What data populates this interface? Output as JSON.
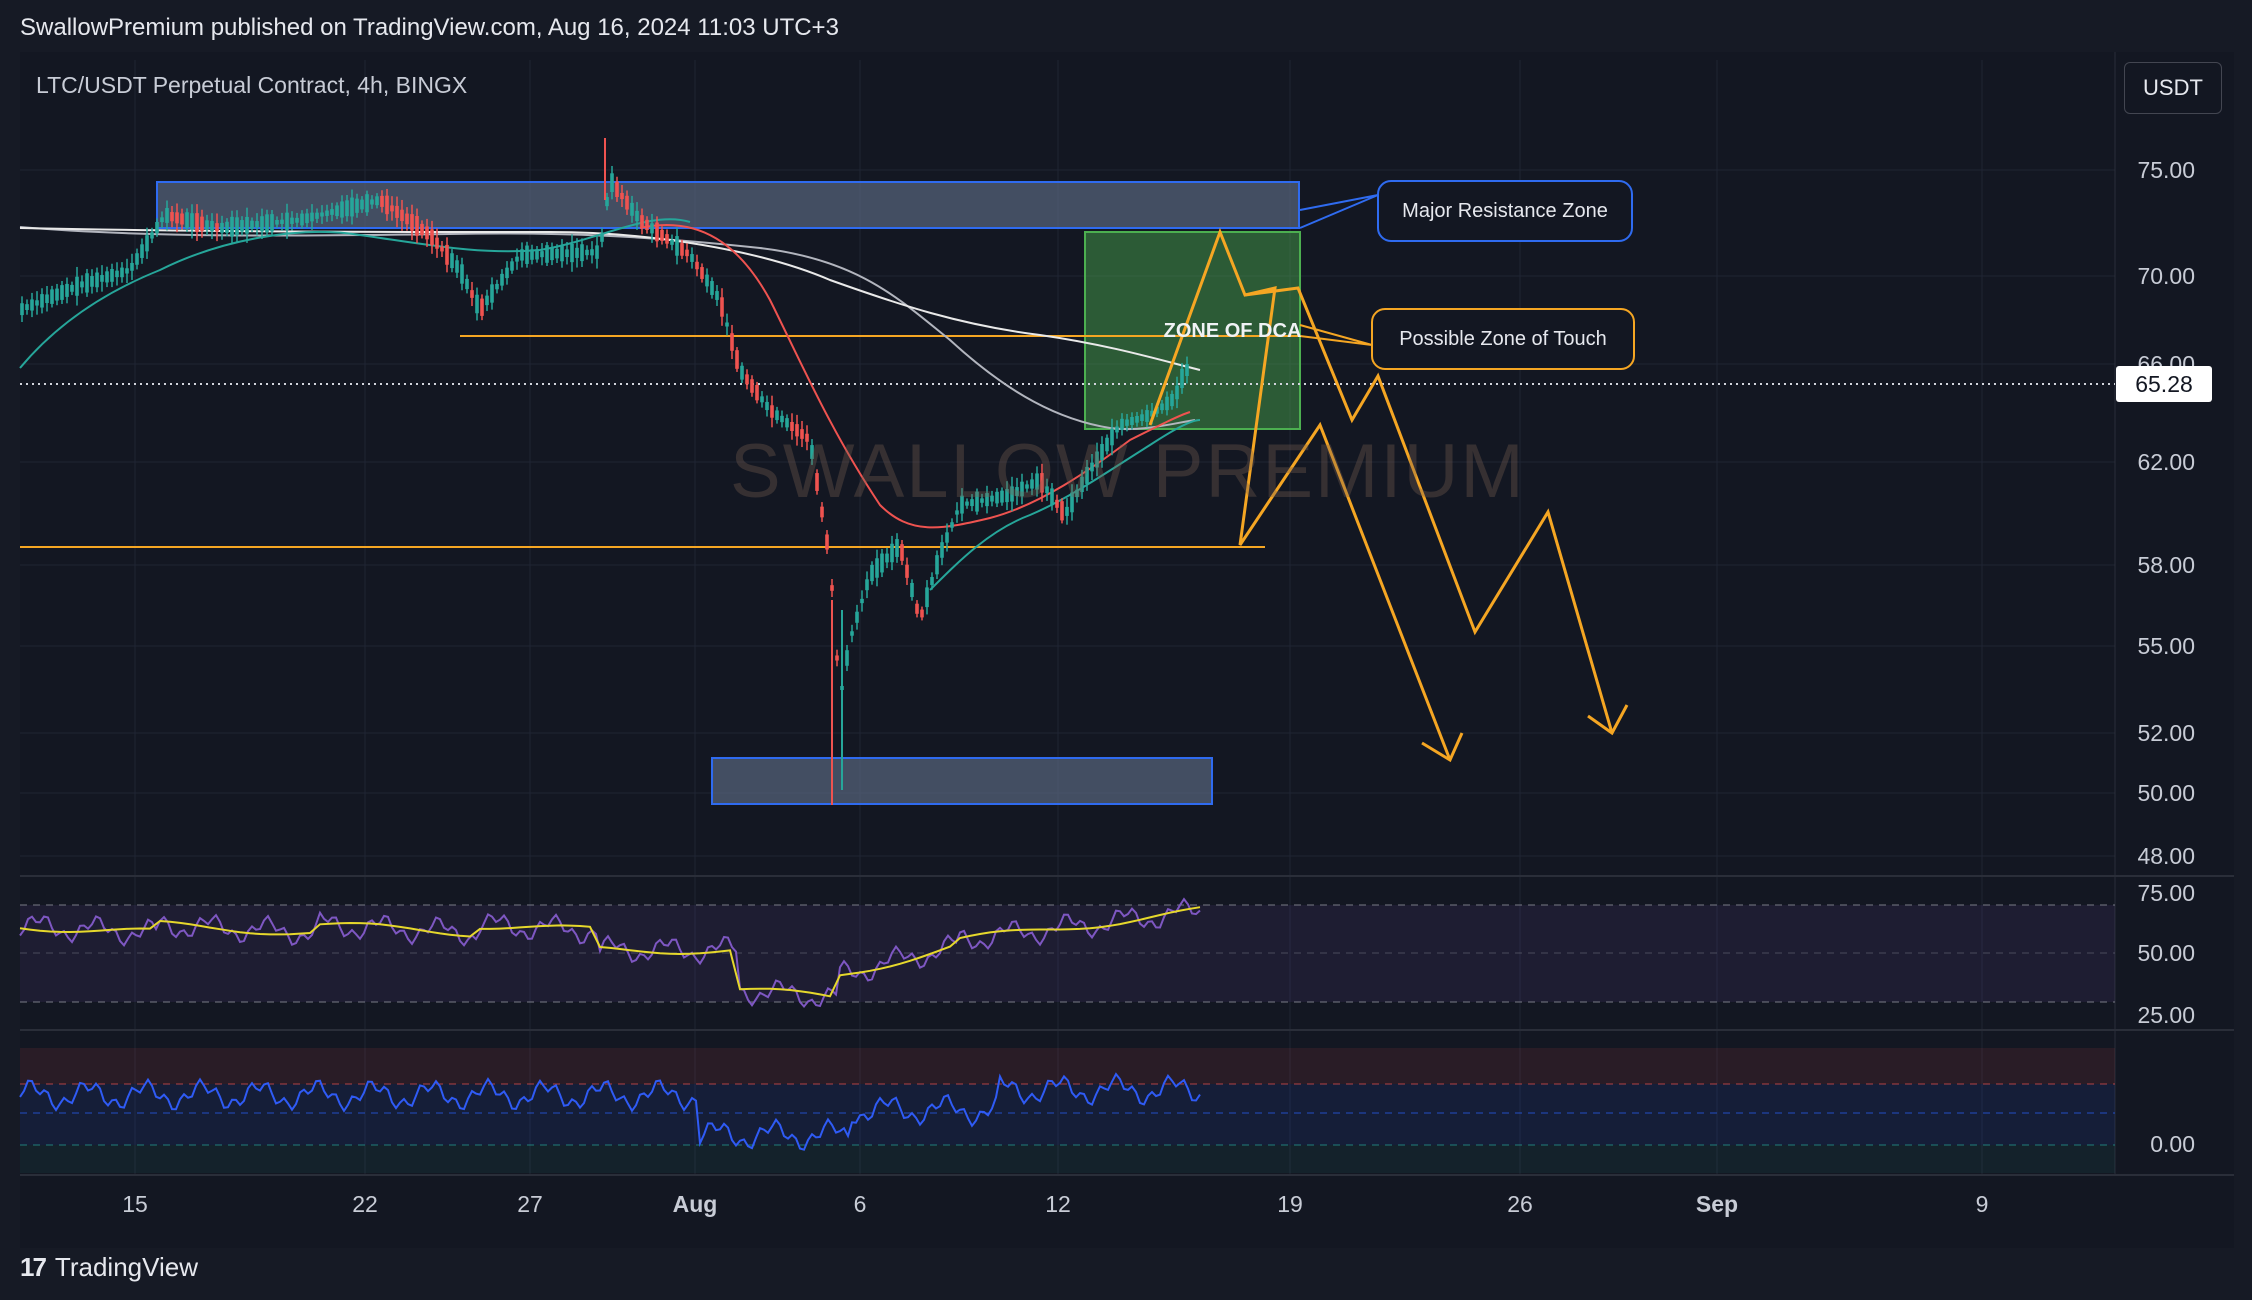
{
  "header": {
    "publisher": "SwallowPremium published on TradingView.com, Aug 16, 2024 11:03 UTC+3"
  },
  "chart": {
    "symbol": "LTC/USDT Perpetual Contract, 4h, BINGX",
    "unit": "USDT",
    "last_price": "65.28",
    "watermark": "SWALLOW PREMIUM",
    "price_ticks": [
      "75.00",
      "70.00",
      "66.00",
      "62.00",
      "58.00",
      "55.00",
      "52.00",
      "50.00",
      "48.00"
    ],
    "rsi_ticks": [
      "75.00",
      "50.00",
      "25.00"
    ],
    "osc_ticks": [
      "0.00"
    ],
    "date_ticks": [
      "15",
      "22",
      "27",
      "Aug",
      "6",
      "12",
      "19",
      "26",
      "Sep",
      "9"
    ]
  },
  "annotations": {
    "resistance": "Major Resistance Zone",
    "touch": "Possible Zone of Touch",
    "dca": "ZONE OF DCA"
  },
  "footer": {
    "brand": "TradingView",
    "logo": "17"
  },
  "colors": {
    "background": "#131722",
    "up": "#26a69a",
    "down": "#ef5350",
    "orange": "#f5a623",
    "blue": "#2f6bf0",
    "rsi": "#7e57c2",
    "rsi_ma": "#e6d82c",
    "osc": "#2f5bf5"
  }
}
